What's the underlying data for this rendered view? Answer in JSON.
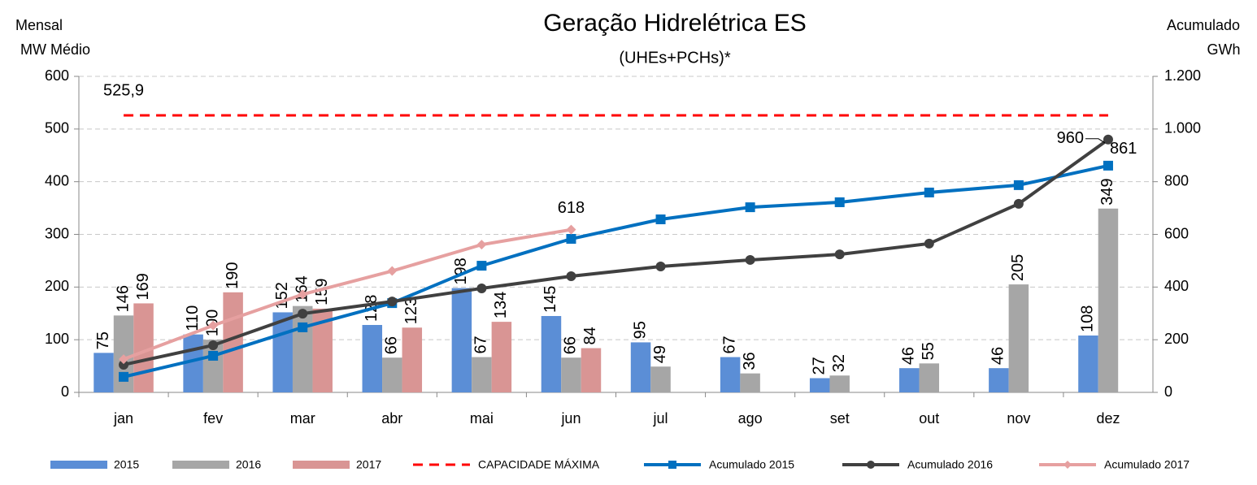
{
  "chart_data": {
    "type": "bar",
    "title": "Geração Hidrelétrica ES",
    "subtitle": "(UHEs+PCHs)*",
    "y_label": [
      "Mensal",
      "MW Médio"
    ],
    "y2_label": [
      "Acumulado",
      "GWh"
    ],
    "categories": [
      "jan",
      "fev",
      "mar",
      "abr",
      "mai",
      "jun",
      "jul",
      "ago",
      "set",
      "out",
      "nov",
      "dez"
    ],
    "ylim": [
      0,
      600
    ],
    "yticks": [
      0,
      100,
      200,
      300,
      400,
      500,
      600
    ],
    "y2lim": [
      0,
      1200
    ],
    "y2ticks": [
      0,
      200,
      400,
      600,
      800,
      {
        "value": 1000,
        "label": "1.000"
      },
      {
        "value": 1200,
        "label": "1.200"
      }
    ],
    "grid": true,
    "legend": "bottom",
    "series": [
      {
        "name": "2015",
        "type": "bar",
        "color": "#5b8ed6",
        "label_color": "#2f5597",
        "values": [
          75,
          110,
          152,
          128,
          198,
          145,
          95,
          67,
          27,
          46,
          46,
          108
        ]
      },
      {
        "name": "2016",
        "type": "bar",
        "color": "#a6a6a6",
        "label_color": "#8c8c8c",
        "values": [
          146,
          100,
          164,
          66,
          67,
          66,
          49,
          36,
          32,
          55,
          205,
          349
        ]
      },
      {
        "name": "2017",
        "type": "bar",
        "color": "#d99594",
        "label_color": "#a63a3a",
        "values": [
          169,
          190,
          159,
          123,
          134,
          84,
          null,
          null,
          null,
          null,
          null,
          null
        ]
      },
      {
        "name": "CAPACIDADE MÁXIMA",
        "type": "line",
        "dash": true,
        "color": "#ff0000",
        "values": [
          525.9,
          525.9,
          525.9,
          525.9,
          525.9,
          525.9,
          525.9,
          525.9,
          525.9,
          525.9,
          525.9,
          525.9
        ],
        "value_labels": [
          "525,9",
          null,
          null,
          null,
          null,
          null,
          null,
          null,
          null,
          null,
          null,
          null
        ]
      },
      {
        "name": "Acumulado 2015",
        "type": "line",
        "axis": "y2",
        "marker": "square",
        "color": "#0070c0",
        "values": [
          59,
          139,
          247,
          339,
          481,
          583,
          657,
          703,
          722,
          759,
          787,
          861
        ],
        "value_labels": [
          null,
          null,
          null,
          null,
          null,
          null,
          null,
          null,
          null,
          null,
          null,
          "861"
        ]
      },
      {
        "name": "Acumulado 2016",
        "type": "line",
        "axis": "y2",
        "marker": "circle",
        "color": "#404040",
        "values": [
          105,
          179,
          299,
          345,
          395,
          441,
          478,
          503,
          524,
          565,
          716,
          960
        ],
        "value_labels": [
          null,
          null,
          null,
          null,
          null,
          null,
          null,
          null,
          null,
          null,
          null,
          "960"
        ]
      },
      {
        "name": "Acumulado 2017",
        "type": "line",
        "axis": "y2",
        "marker": "diamond",
        "color": "#e6a0a0",
        "values": [
          126,
          254,
          372,
          461,
          561,
          618,
          null,
          null,
          null,
          null,
          null,
          null
        ],
        "value_labels": [
          null,
          null,
          null,
          null,
          null,
          "618",
          null,
          null,
          null,
          null,
          null,
          null
        ]
      }
    ]
  }
}
